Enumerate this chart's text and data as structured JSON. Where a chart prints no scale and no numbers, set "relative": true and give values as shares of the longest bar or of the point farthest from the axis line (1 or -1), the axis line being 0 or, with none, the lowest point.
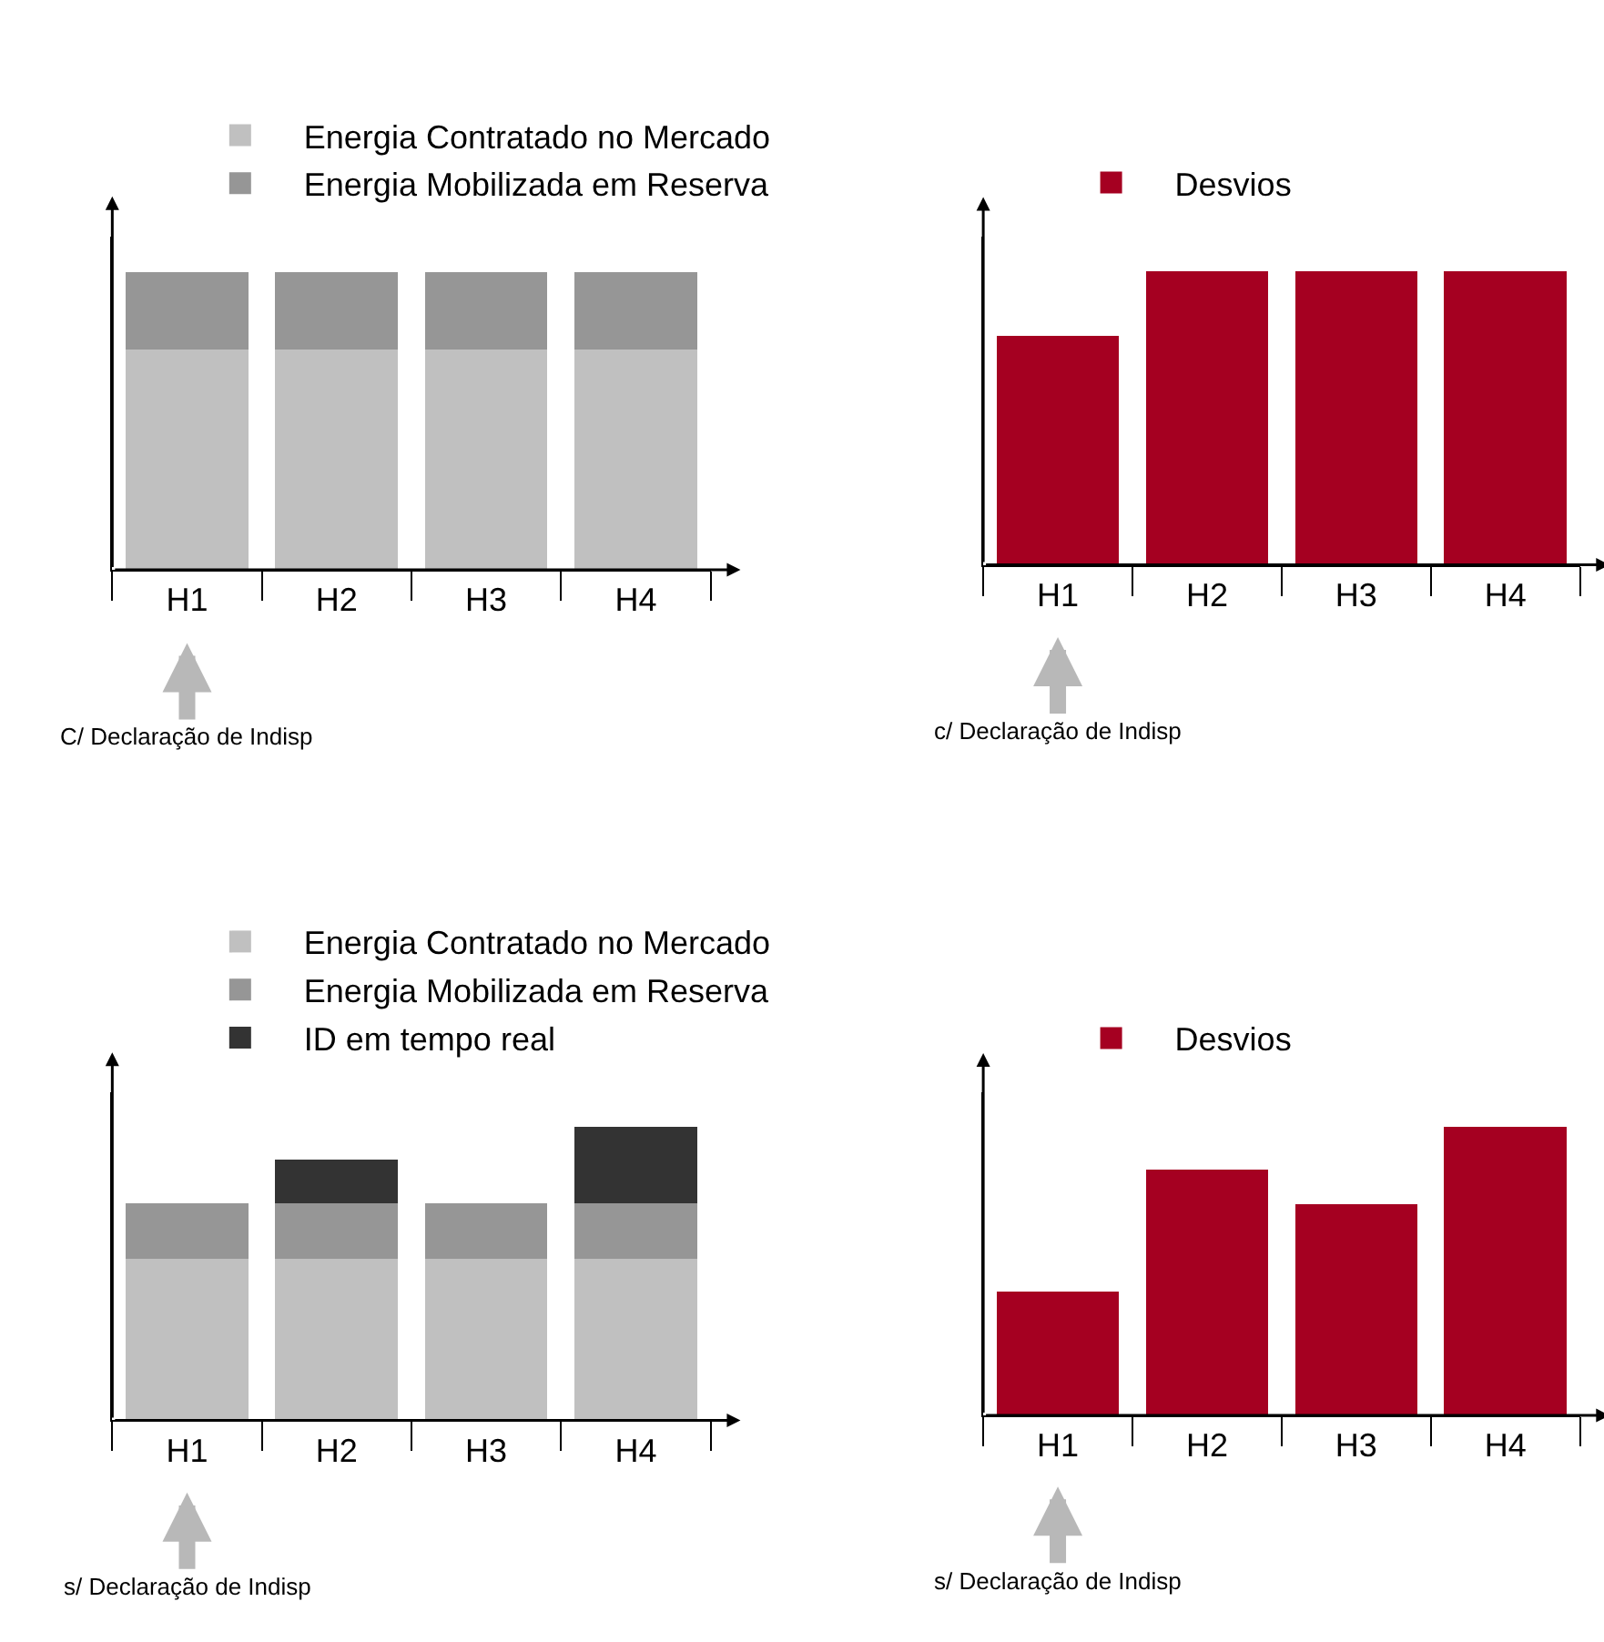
{
  "chart_data": [
    {
      "type": "bar",
      "stacked": true,
      "relative": true,
      "legend": "top",
      "categories": [
        "H1",
        "H2",
        "H3",
        "H4"
      ],
      "series": [
        {
          "name": "Energia Contratado no Mercado",
          "color": "#c0c0c0",
          "values": [
            0.74,
            0.74,
            0.74,
            0.74
          ]
        },
        {
          "name": "Energia Mobilizada em Reserva",
          "color": "#969696",
          "values": [
            0.26,
            0.26,
            0.26,
            0.26
          ]
        }
      ],
      "annotations": [
        "C/ Declaração de Indisp"
      ]
    },
    {
      "type": "bar",
      "relative": true,
      "legend": "top",
      "categories": [
        "H1",
        "H2",
        "H3",
        "H4"
      ],
      "series": [
        {
          "name": "Desvios",
          "color": "#a50021",
          "values": [
            0.78,
            1,
            1,
            1
          ]
        }
      ],
      "annotations": [
        "c/ Declaração de Indisp"
      ]
    },
    {
      "type": "bar",
      "stacked": true,
      "relative": true,
      "legend": "top",
      "categories": [
        "H1",
        "H2",
        "H3",
        "H4"
      ],
      "series": [
        {
          "name": "Energia Contratado no Mercado",
          "color": "#c0c0c0",
          "values": [
            0.55,
            0.55,
            0.55,
            0.55
          ]
        },
        {
          "name": "Energia Mobilizada em Reserva",
          "color": "#969696",
          "values": [
            0.19,
            0.19,
            0.19,
            0.19
          ]
        },
        {
          "name": "ID em tempo real",
          "color": "#333333",
          "values": [
            null,
            0.15,
            null,
            0.26
          ]
        }
      ],
      "annotations": [
        "s/ Declaração de Indisp"
      ]
    },
    {
      "type": "bar",
      "relative": true,
      "legend": "top",
      "categories": [
        "H1",
        "H2",
        "H3",
        "H4"
      ],
      "series": [
        {
          "name": "Desvios",
          "color": "#a50021",
          "values": [
            0.43,
            0.85,
            0.73,
            1
          ]
        }
      ],
      "annotations": [
        "s/ Declaração de Indisp"
      ]
    }
  ]
}
